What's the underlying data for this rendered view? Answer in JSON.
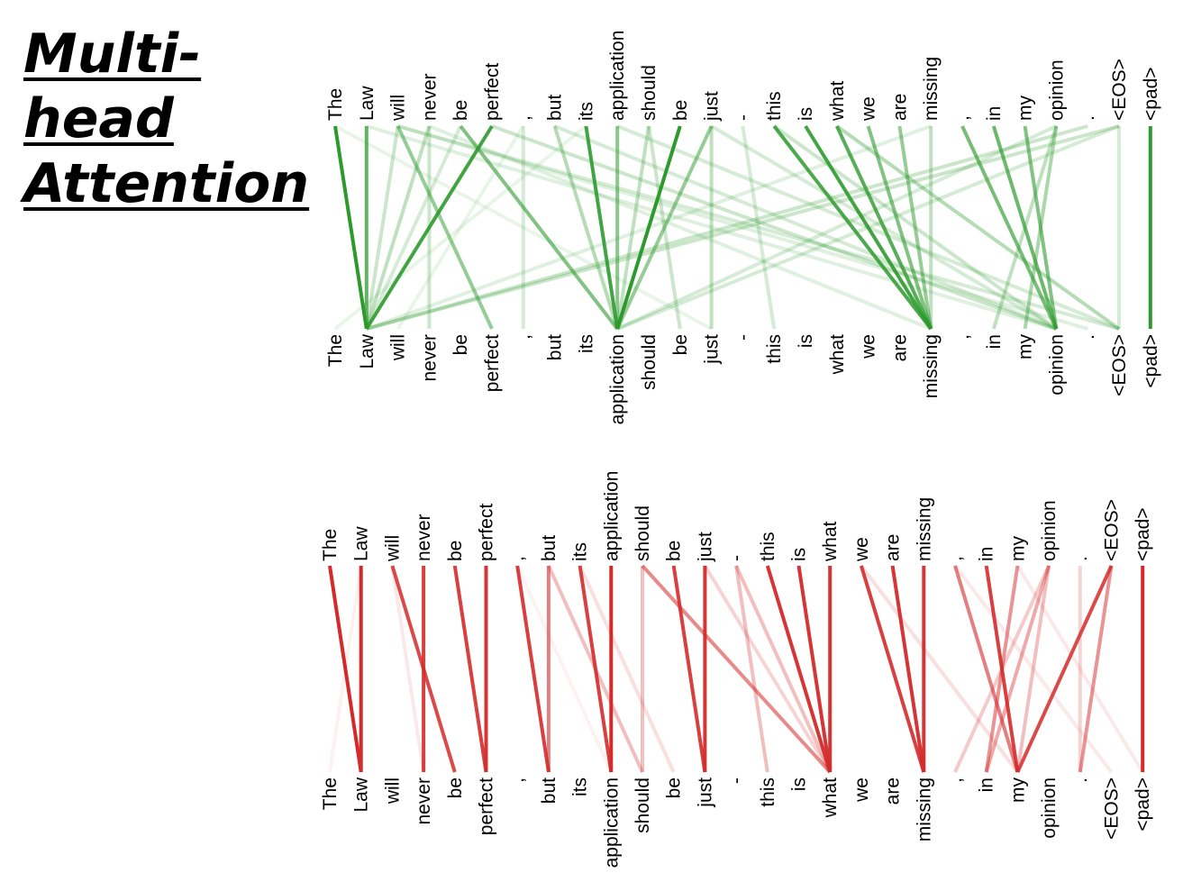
{
  "title": {
    "line1": "Multi-",
    "line2": "head",
    "line3": "Attention"
  },
  "tokens": [
    "The",
    "Law",
    "will",
    "never",
    "be",
    "perfect",
    ",",
    "but",
    "its",
    "application",
    "should",
    "be",
    "just",
    "-",
    "this",
    "is",
    "what",
    "we",
    "are",
    "missing",
    ",",
    "in",
    "my",
    "opinion",
    ".",
    "<EOS>",
    "<pad>"
  ],
  "colors": {
    "green": "#2e9a2e",
    "red": "#d42a2a"
  },
  "diagrams": [
    {
      "name": "green",
      "links": [
        [
          0,
          1,
          1.0
        ],
        [
          1,
          1,
          0.75
        ],
        [
          2,
          1,
          0.25
        ],
        [
          3,
          1,
          0.3
        ],
        [
          4,
          1,
          0.2
        ],
        [
          5,
          1,
          0.9
        ],
        [
          2,
          5,
          0.5
        ],
        [
          3,
          3,
          0.25
        ],
        [
          4,
          9,
          0.6
        ],
        [
          6,
          6,
          0.2
        ],
        [
          7,
          9,
          0.35
        ],
        [
          8,
          9,
          0.9
        ],
        [
          9,
          9,
          0.55
        ],
        [
          10,
          9,
          0.3
        ],
        [
          11,
          9,
          1.0
        ],
        [
          12,
          9,
          0.5
        ],
        [
          10,
          11,
          0.25
        ],
        [
          12,
          12,
          0.3
        ],
        [
          14,
          19,
          0.85
        ],
        [
          15,
          19,
          0.9
        ],
        [
          16,
          19,
          0.8
        ],
        [
          17,
          19,
          0.6
        ],
        [
          18,
          19,
          0.5
        ],
        [
          19,
          19,
          0.3
        ],
        [
          13,
          14,
          0.2
        ],
        [
          16,
          25,
          0.35
        ],
        [
          21,
          23,
          0.7
        ],
        [
          22,
          23,
          0.6
        ],
        [
          23,
          22,
          0.4
        ],
        [
          20,
          23,
          0.65
        ],
        [
          23,
          21,
          0.3
        ],
        [
          25,
          1,
          0.25
        ],
        [
          25,
          9,
          0.2
        ],
        [
          24,
          1,
          0.25
        ],
        [
          23,
          9,
          0.2
        ],
        [
          19,
          1,
          0.15
        ],
        [
          2,
          25,
          0.2
        ],
        [
          5,
          23,
          0.25
        ],
        [
          9,
          25,
          0.2
        ],
        [
          12,
          23,
          0.2
        ],
        [
          8,
          0,
          0.1
        ],
        [
          0,
          12,
          0.1
        ],
        [
          6,
          2,
          0.1
        ],
        [
          3,
          19,
          0.15
        ],
        [
          7,
          23,
          0.2
        ],
        [
          2,
          24,
          0.15
        ],
        [
          26,
          26,
          1.0
        ],
        [
          25,
          25,
          0.2
        ],
        [
          14,
          23,
          0.25
        ],
        [
          1,
          23,
          0.15
        ]
      ]
    },
    {
      "name": "red",
      "links": [
        [
          0,
          1,
          1.0
        ],
        [
          1,
          1,
          1.0
        ],
        [
          2,
          4,
          0.85
        ],
        [
          3,
          3,
          0.9
        ],
        [
          4,
          5,
          0.9
        ],
        [
          5,
          5,
          0.95
        ],
        [
          1,
          0,
          0.05
        ],
        [
          2,
          3,
          0.1
        ],
        [
          6,
          7,
          0.9
        ],
        [
          7,
          7,
          0.6
        ],
        [
          8,
          9,
          0.9
        ],
        [
          9,
          9,
          1.0
        ],
        [
          7,
          10,
          0.3
        ],
        [
          8,
          11,
          0.15
        ],
        [
          6,
          9,
          0.05
        ],
        [
          10,
          10,
          0.3
        ],
        [
          10,
          16,
          0.55
        ],
        [
          11,
          12,
          0.9
        ],
        [
          12,
          12,
          0.95
        ],
        [
          13,
          14,
          0.3
        ],
        [
          13,
          16,
          0.3
        ],
        [
          14,
          16,
          0.95
        ],
        [
          15,
          16,
          0.95
        ],
        [
          16,
          16,
          0.95
        ],
        [
          12,
          16,
          0.2
        ],
        [
          17,
          19,
          0.9
        ],
        [
          18,
          19,
          0.95
        ],
        [
          19,
          19,
          0.95
        ],
        [
          17,
          22,
          0.15
        ],
        [
          20,
          22,
          0.6
        ],
        [
          21,
          22,
          0.9
        ],
        [
          22,
          21,
          0.5
        ],
        [
          23,
          22,
          0.3
        ],
        [
          23,
          20,
          0.25
        ],
        [
          23,
          21,
          0.4
        ],
        [
          24,
          24,
          0.2
        ],
        [
          25,
          24,
          0.5
        ],
        [
          26,
          26,
          1.0
        ],
        [
          25,
          22,
          0.85
        ],
        [
          20,
          25,
          0.1
        ],
        [
          22,
          26,
          0.1
        ]
      ]
    }
  ]
}
